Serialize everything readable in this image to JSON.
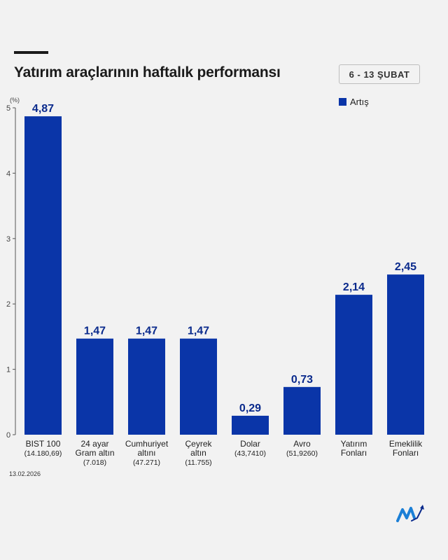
{
  "header": {
    "title": "Yatırım araçlarının haftalık performansı",
    "date_range": "6 - 13 ŞUBAT"
  },
  "footer": {
    "date": "13.02.2026"
  },
  "colors": {
    "bar": "#0a35a8",
    "value_label": "#0a2a8c",
    "axis": "#555555",
    "background": "#f2f2f2"
  },
  "chart_data": {
    "type": "bar",
    "title": "Yatırım araçlarının haftalık performansı",
    "ylabel": "(%)",
    "xlabel": "",
    "ylim": [
      0,
      5
    ],
    "yticks": [
      0,
      1,
      2,
      3,
      4,
      5
    ],
    "grid": false,
    "legend_position": "top-right",
    "categories": [
      [
        "BIST 100",
        "(14.180,69)"
      ],
      [
        "24 ayar",
        "Gram altın",
        "(7.018)"
      ],
      [
        "Cumhuriyet",
        "altını",
        "(47.271)"
      ],
      [
        "Çeyrek",
        "altın",
        "(11.755)"
      ],
      [
        "Dolar",
        "(43,7410)"
      ],
      [
        "Avro",
        "(51,9260)"
      ],
      [
        "Yatırım",
        "Fonları"
      ],
      [
        "Emeklilik",
        "Fonları"
      ]
    ],
    "series": [
      {
        "name": "Artış",
        "values": [
          4.87,
          1.47,
          1.47,
          1.47,
          0.29,
          0.73,
          2.14,
          2.45
        ],
        "labels": [
          "4,87",
          "1,47",
          "1,47",
          "1,47",
          "0,29",
          "0,73",
          "2,14",
          "2,45"
        ]
      }
    ]
  }
}
